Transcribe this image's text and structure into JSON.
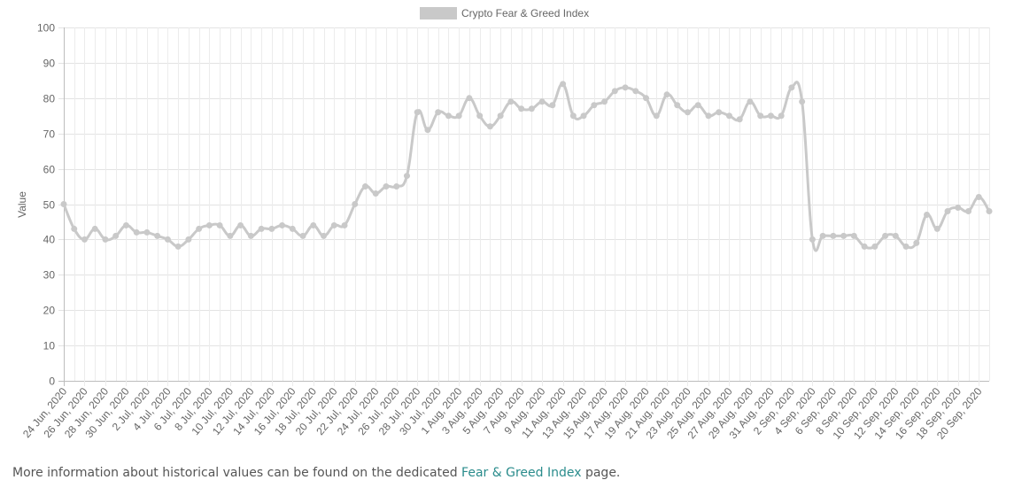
{
  "chart_data": {
    "type": "line",
    "ylabel": "Value",
    "ylim": [
      0,
      100
    ],
    "yticks": [
      0,
      10,
      20,
      30,
      40,
      50,
      60,
      70,
      80,
      90,
      100
    ],
    "grid": true,
    "legend_position": "top",
    "x_tick_labels": [
      "24 Jun, 2020",
      "26 Jun, 2020",
      "28 Jun, 2020",
      "30 Jun, 2020",
      "2 Jul, 2020",
      "4 Jul, 2020",
      "6 Jul, 2020",
      "8 Jul, 2020",
      "10 Jul, 2020",
      "12 Jul, 2020",
      "14 Jul, 2020",
      "16 Jul, 2020",
      "18 Jul, 2020",
      "20 Jul, 2020",
      "22 Jul, 2020",
      "24 Jul, 2020",
      "26 Jul, 2020",
      "28 Jul, 2020",
      "30 Jul, 2020",
      "1 Aug, 2020",
      "3 Aug, 2020",
      "5 Aug, 2020",
      "7 Aug, 2020",
      "9 Aug, 2020",
      "11 Aug, 2020",
      "13 Aug, 2020",
      "15 Aug, 2020",
      "17 Aug, 2020",
      "19 Aug, 2020",
      "21 Aug, 2020",
      "23 Aug, 2020",
      "25 Aug, 2020",
      "27 Aug, 2020",
      "29 Aug, 2020",
      "31 Aug, 2020",
      "2 Sep, 2020",
      "4 Sep, 2020",
      "6 Sep, 2020",
      "8 Sep, 2020",
      "10 Sep, 2020",
      "12 Sep, 2020",
      "14 Sep, 2020",
      "16 Sep, 2020",
      "18 Sep, 2020",
      "20 Sep, 2020"
    ],
    "x_first": "2020-06-24",
    "x_last": "2020-09-21",
    "series": [
      {
        "name": "Crypto Fear & Greed Index",
        "color": "#c9c9c9",
        "values": [
          50,
          43,
          40,
          43,
          40,
          41,
          44,
          42,
          42,
          41,
          40,
          38,
          40,
          43,
          44,
          44,
          41,
          44,
          41,
          43,
          43,
          44,
          43,
          41,
          44,
          41,
          44,
          44,
          50,
          55,
          53,
          55,
          55,
          58,
          76,
          71,
          76,
          75,
          75,
          80,
          75,
          72,
          75,
          79,
          77,
          77,
          79,
          78,
          84,
          75,
          75,
          78,
          79,
          82,
          83,
          82,
          80,
          75,
          81,
          78,
          76,
          78,
          75,
          76,
          75,
          74,
          79,
          75,
          75,
          75,
          83,
          79,
          40,
          41,
          41,
          41,
          41,
          38,
          38,
          41,
          41,
          38,
          39,
          47,
          43,
          48,
          49,
          48,
          52,
          48
        ]
      }
    ]
  },
  "footer": {
    "text_before": "More information about historical values can be found on the dedicated ",
    "link_text": "Fear & Greed Index",
    "text_after": " page."
  }
}
